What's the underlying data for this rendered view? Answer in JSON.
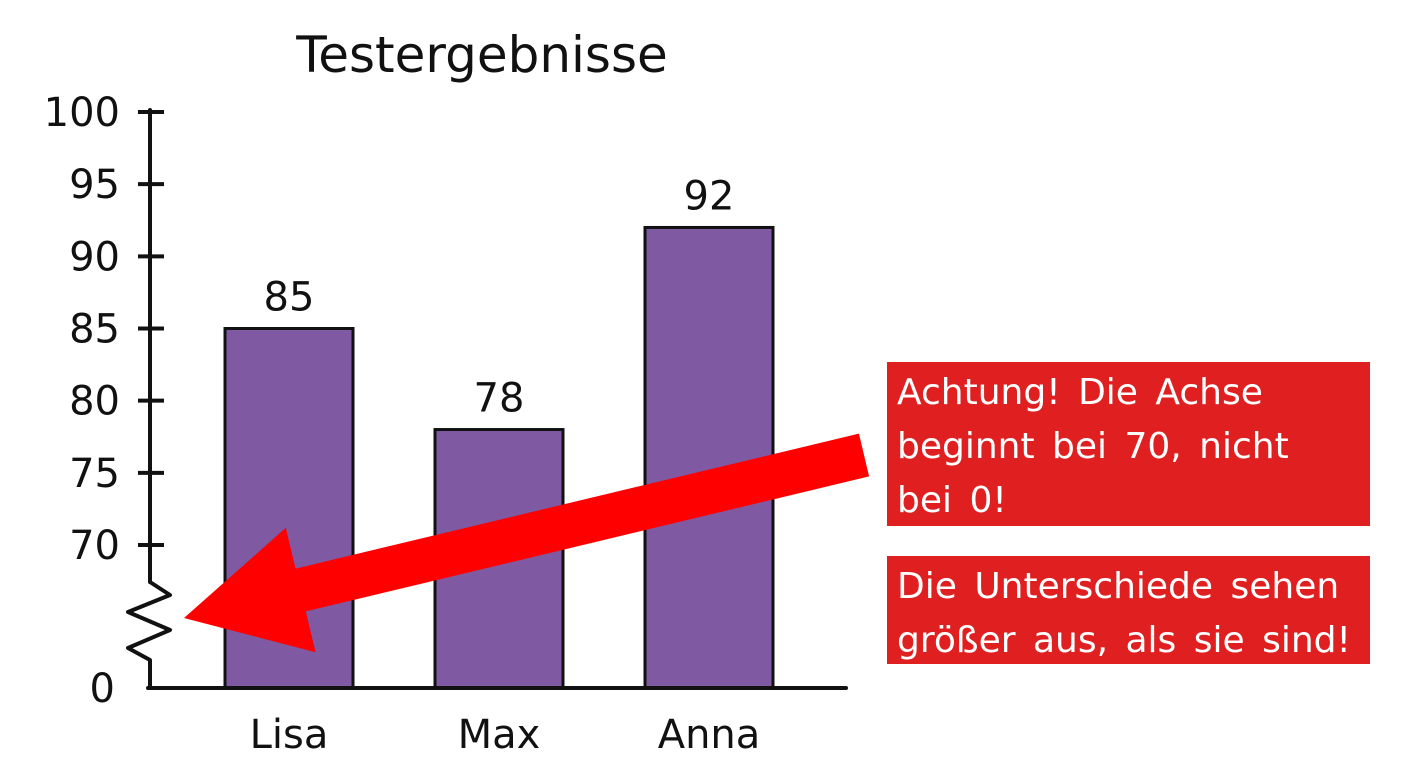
{
  "chart_data": {
    "type": "bar",
    "title": "Testergebnisse",
    "xlabel": "",
    "ylabel": "",
    "categories": [
      "Lisa",
      "Max",
      "Anna"
    ],
    "values": [
      85,
      78,
      92
    ],
    "data_labels": [
      "85",
      "78",
      "92"
    ],
    "y_ticks": [
      {
        "value": 0,
        "label": "0"
      },
      {
        "value": 70,
        "label": "70"
      },
      {
        "value": 75,
        "label": "75"
      },
      {
        "value": 80,
        "label": "80"
      },
      {
        "value": 85,
        "label": "85"
      },
      {
        "value": 90,
        "label": "90"
      },
      {
        "value": 95,
        "label": "95"
      },
      {
        "value": 100,
        "label": "100"
      }
    ],
    "ylim": [
      70,
      100
    ],
    "axis_break": true,
    "grid": false,
    "legend": "none",
    "bar_color": "#7f5aa2",
    "annotations": [
      "Achtung!  Die Achse\nbeginnt bei 70, nicht\nbei 0!",
      "Die Unterschiede sehen\ngrößer aus, als sie sind!"
    ]
  },
  "colors": {
    "bar": "#7f5aa2",
    "outline": "#111111",
    "arrow": "#ff0000",
    "note_background": "#e02020",
    "note_text": "#ffffff"
  },
  "icons": {
    "arrow": "warning-arrow-icon",
    "axis_break": "zigzag-break-icon"
  }
}
